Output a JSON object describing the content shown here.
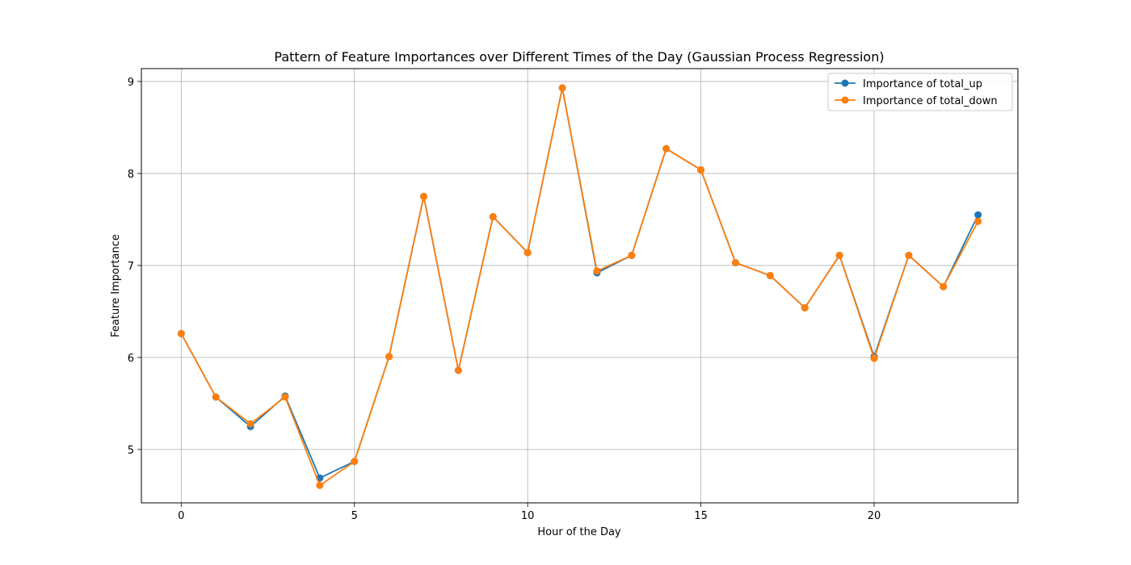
{
  "chart_data": {
    "type": "line",
    "title": "Pattern of Feature Importances over Different Times of the Day (Gaussian Process Regression)",
    "xlabel": "Hour of the Day",
    "ylabel": "Feature Importance",
    "x": [
      0,
      1,
      2,
      3,
      4,
      5,
      6,
      7,
      8,
      9,
      10,
      11,
      12,
      13,
      14,
      15,
      16,
      17,
      18,
      19,
      20,
      21,
      22,
      23
    ],
    "xlim": [
      -1.15,
      24.15
    ],
    "ylim": [
      4.42,
      9.14
    ],
    "xticks": [
      0,
      5,
      10,
      15,
      20
    ],
    "yticks": [
      5,
      6,
      7,
      8,
      9
    ],
    "grid": true,
    "legend_position": "top-right",
    "series": [
      {
        "name": "Importance of total_up",
        "color": "#1f77b4",
        "marker": "circle",
        "values": [
          6.26,
          5.57,
          5.25,
          5.58,
          4.69,
          4.87,
          6.01,
          7.75,
          5.86,
          7.53,
          7.14,
          8.93,
          6.92,
          7.11,
          8.27,
          8.04,
          7.03,
          6.89,
          6.54,
          7.11,
          6.01,
          7.11,
          6.77,
          7.55
        ]
      },
      {
        "name": "Importance of total_down",
        "color": "#ff7f0e",
        "marker": "circle",
        "values": [
          6.26,
          5.57,
          5.28,
          5.57,
          4.61,
          4.87,
          6.01,
          7.75,
          5.86,
          7.53,
          7.14,
          8.93,
          6.94,
          7.11,
          8.27,
          8.04,
          7.03,
          6.89,
          6.54,
          7.11,
          5.99,
          7.11,
          6.77,
          7.48
        ]
      }
    ]
  }
}
